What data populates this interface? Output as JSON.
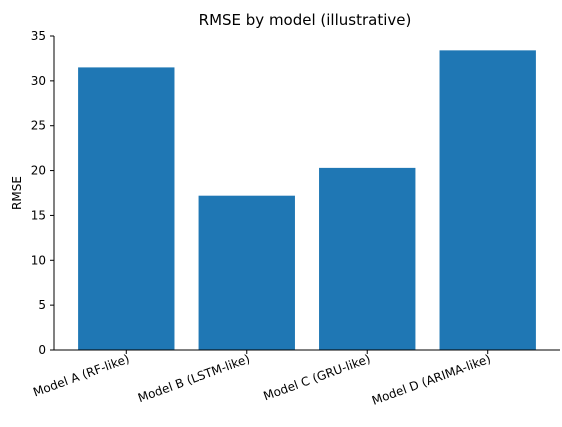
{
  "chart_data": {
    "type": "bar",
    "title": "RMSE by model (illustrative)",
    "xlabel": "",
    "ylabel": "RMSE",
    "categories": [
      "Model A (RF-like)",
      "Model B (LSTM-like)",
      "Model C (GRU-like)",
      "Model D (ARIMA-like)"
    ],
    "values": [
      31.5,
      17.2,
      20.3,
      33.4
    ],
    "ylim": [
      0,
      35
    ],
    "yticks": [
      0,
      5,
      10,
      15,
      20,
      25,
      30,
      35
    ],
    "grid": false,
    "legend": "none",
    "bar_color": "#1f77b4"
  }
}
